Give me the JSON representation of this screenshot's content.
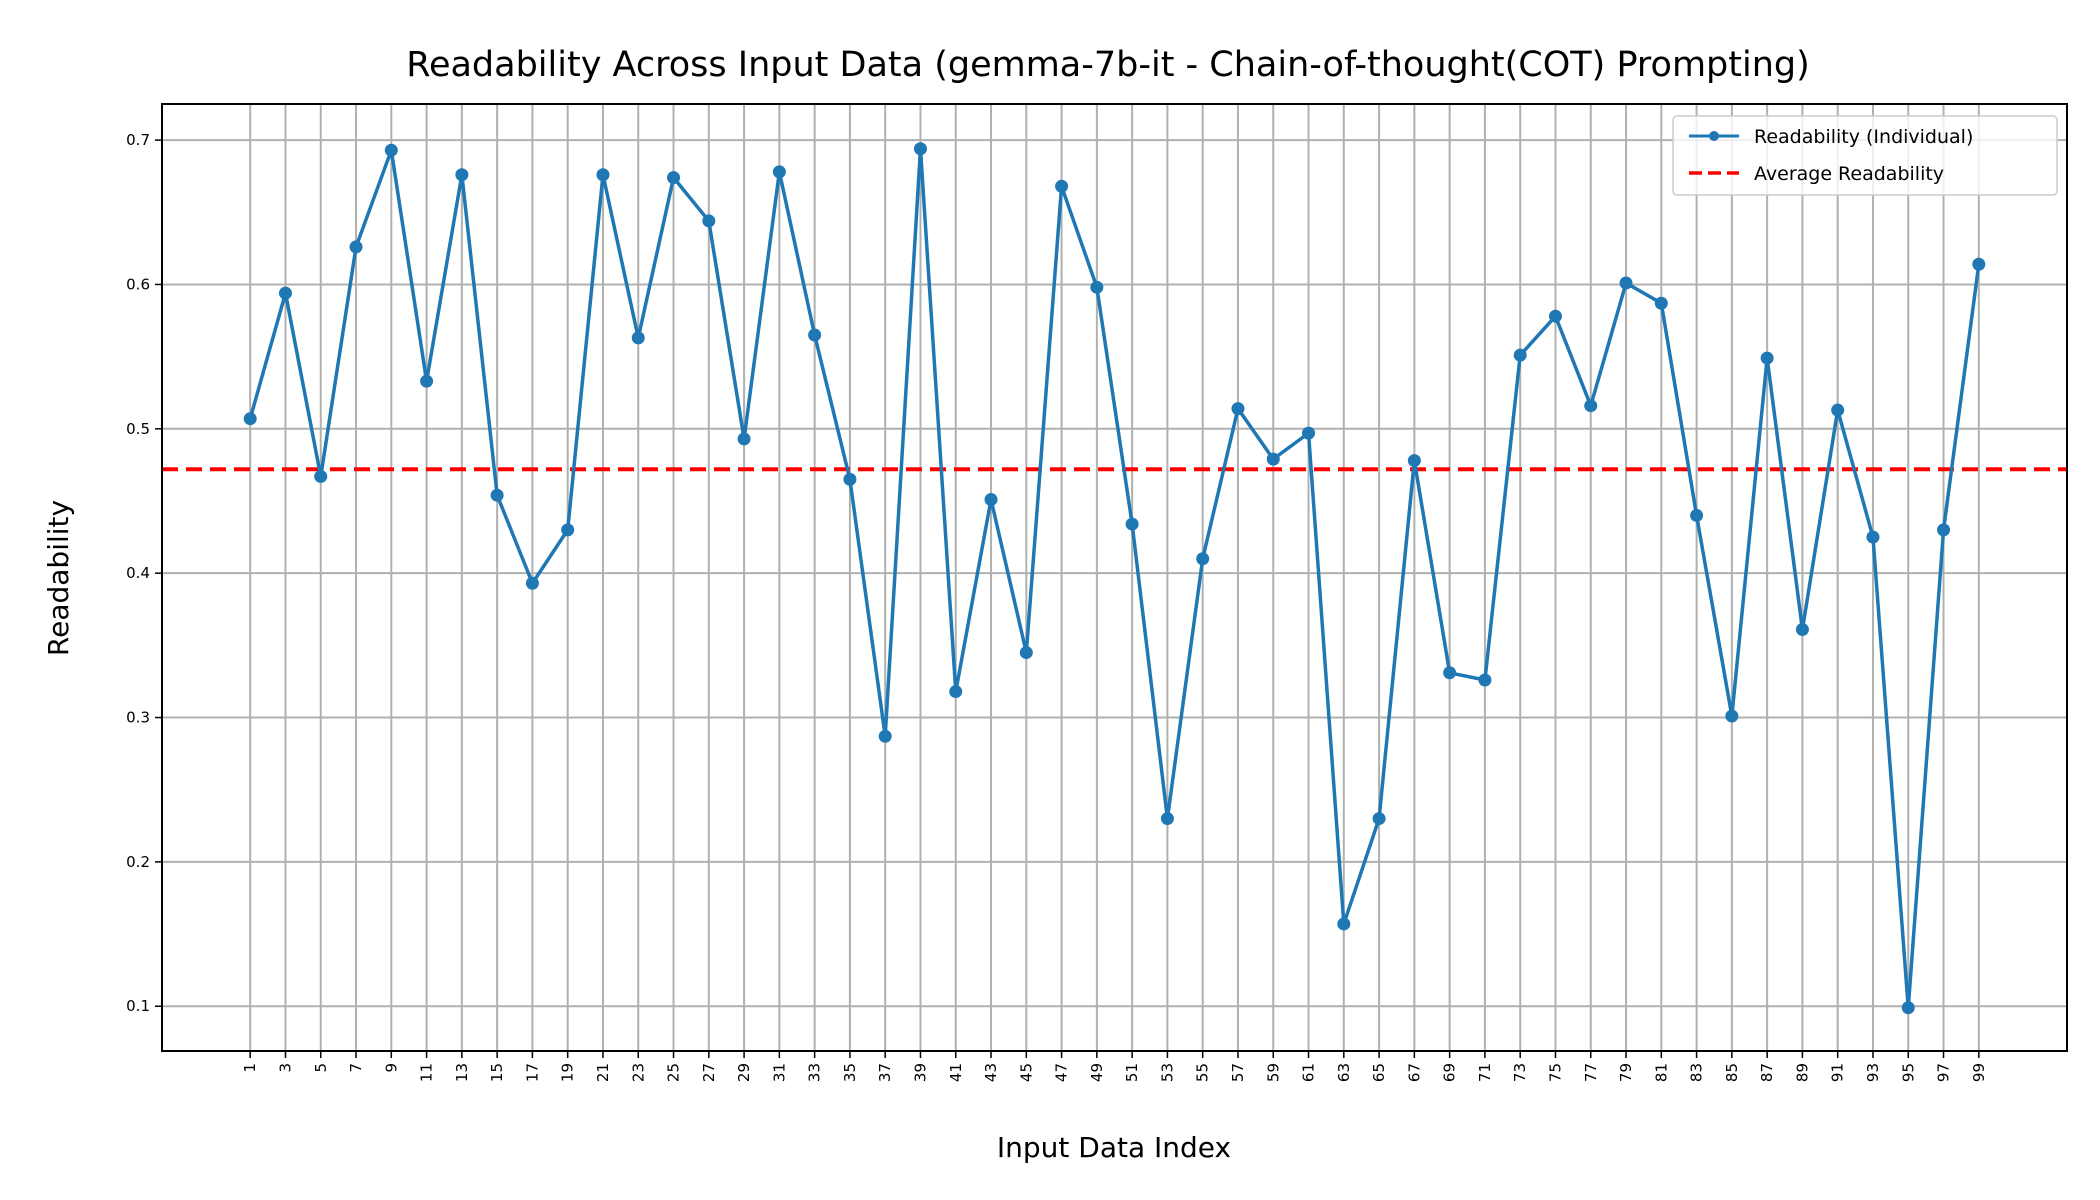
{
  "chart_data": {
    "type": "line",
    "title": "Readability Across Input Data (gemma-7b-it - Chain-of-thought(COT) Prompting)",
    "xlabel": "Input Data Index",
    "ylabel": "Readability",
    "x": [
      1,
      3,
      5,
      7,
      9,
      11,
      13,
      15,
      17,
      19,
      21,
      23,
      25,
      27,
      29,
      31,
      33,
      35,
      37,
      39,
      41,
      43,
      45,
      47,
      49,
      51,
      53,
      55,
      57,
      59,
      61,
      63,
      65,
      67,
      69,
      71,
      73,
      75,
      77,
      79,
      81,
      83,
      85,
      87,
      89,
      91,
      93,
      95,
      97,
      99
    ],
    "xticks": [
      1,
      3,
      5,
      7,
      9,
      11,
      13,
      15,
      17,
      19,
      21,
      23,
      25,
      27,
      29,
      31,
      33,
      35,
      37,
      39,
      41,
      43,
      45,
      47,
      49,
      51,
      53,
      55,
      57,
      59,
      61,
      63,
      65,
      67,
      69,
      71,
      73,
      75,
      77,
      79,
      81,
      83,
      85,
      87,
      89,
      91,
      93,
      95,
      97,
      99
    ],
    "xlim": [
      -4.0,
      104.0
    ],
    "ylim": [
      0.069,
      0.725
    ],
    "yticks": [
      0.1,
      0.2,
      0.3,
      0.4,
      0.5,
      0.6,
      0.7
    ],
    "grid": true,
    "legend_position": "top-right",
    "series": [
      {
        "name": "Readability (Individual)",
        "color": "#1f77b4",
        "style": "solid-with-markers",
        "values": [
          0.507,
          0.594,
          0.467,
          0.626,
          0.693,
          0.533,
          0.676,
          0.454,
          0.393,
          0.43,
          0.676,
          0.563,
          0.674,
          0.644,
          0.493,
          0.678,
          0.565,
          0.465,
          0.287,
          0.694,
          0.318,
          0.451,
          0.345,
          0.668,
          0.598,
          0.434,
          0.23,
          0.41,
          0.514,
          0.479,
          0.497,
          0.157,
          0.23,
          0.478,
          0.331,
          0.326,
          0.551,
          0.578,
          0.516,
          0.601,
          0.587,
          0.44,
          0.301,
          0.549,
          0.361,
          0.513,
          0.425,
          0.099,
          0.43,
          0.614
        ]
      },
      {
        "name": "Average Readability",
        "color": "#ff0000",
        "style": "dashed",
        "value": 0.472
      }
    ]
  }
}
